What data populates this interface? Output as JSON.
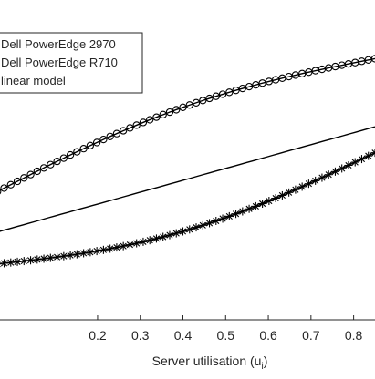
{
  "chart_data": {
    "type": "line",
    "xlabel": "Server utilisation (u",
    "xlabel_subscript": "i",
    "xlabel_suffix": ")",
    "xlim": [
      -0.05,
      0.85
    ],
    "ylim": [
      0,
      1
    ],
    "x_ticks": [
      "0.2",
      "0.3",
      "0.4",
      "0.5",
      "0.6",
      "0.7",
      "0.8"
    ],
    "legend_position": "top-left",
    "grid": false,
    "series": [
      {
        "name": "Dell PowerEdge 2970",
        "marker": "circle",
        "x0": -0.05,
        "x1": 0.85,
        "y0": 0.385,
        "y1": 0.805,
        "curve": 0.06
      },
      {
        "name": "Dell PowerEdge R710",
        "marker": "asterisk",
        "x0": -0.05,
        "x1": 0.85,
        "y0": 0.17,
        "y1": 0.515,
        "curve": -0.07
      },
      {
        "name": "linear model",
        "marker": "none",
        "x0": -0.05,
        "x1": 0.85,
        "y0": 0.265,
        "y1": 0.595,
        "curve": 0
      }
    ]
  }
}
